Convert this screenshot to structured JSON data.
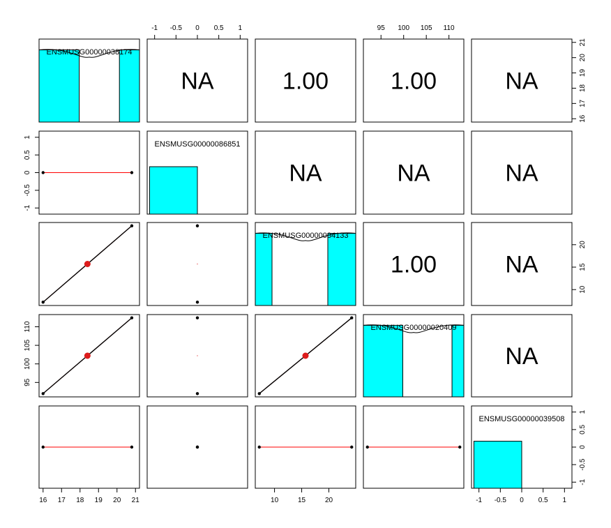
{
  "chart_data": {
    "type": "scatter",
    "kind": "pairs-matrix",
    "variables": [
      "ENSMUSG00000038174",
      "ENSMUSG00000086851",
      "ENSMUSG00000084133",
      "ENSMUSG00000020409",
      "ENSMUSG00000039508"
    ],
    "observations": {
      "ENSMUSG00000038174": [
        16,
        20.8
      ],
      "ENSMUSG00000086851": [
        0,
        0
      ],
      "ENSMUSG00000084133": [
        7.2,
        24.2
      ],
      "ENSMUSG00000020409": [
        92,
        112.4
      ],
      "ENSMUSG00000039508": [
        0,
        0
      ]
    },
    "means": {
      "ENSMUSG00000038174": 18.4,
      "ENSMUSG00000084133": 15.7,
      "ENSMUSG00000020409": 102.2
    },
    "correlations": [
      {
        "row": 1,
        "col": 2,
        "label": "NA"
      },
      {
        "row": 1,
        "col": 3,
        "label": "1.00"
      },
      {
        "row": 1,
        "col": 4,
        "label": "1.00"
      },
      {
        "row": 1,
        "col": 5,
        "label": "NA"
      },
      {
        "row": 2,
        "col": 3,
        "label": "NA"
      },
      {
        "row": 2,
        "col": 4,
        "label": "NA"
      },
      {
        "row": 2,
        "col": 5,
        "label": "NA"
      },
      {
        "row": 3,
        "col": 4,
        "label": "1.00"
      },
      {
        "row": 3,
        "col": 5,
        "label": "NA"
      },
      {
        "row": 4,
        "col": 5,
        "label": "NA"
      }
    ],
    "histograms": [
      {
        "variable": "ENSMUSG00000038174",
        "bins": [
          [
            16,
            18,
            1
          ],
          [
            20,
            21,
            1
          ]
        ],
        "xlim": [
          16,
          21
        ],
        "ymax": 1.15,
        "density_curve": true
      },
      {
        "variable": "ENSMUSG00000086851",
        "bins": [
          [
            -1,
            0,
            1
          ]
        ],
        "xlim": [
          -1.05,
          1.05
        ],
        "ymax": 1.75,
        "density_curve": false
      },
      {
        "variable": "ENSMUSG00000084133",
        "bins": [
          [
            7,
            10,
            1
          ],
          [
            20,
            25,
            1
          ]
        ],
        "xlim": [
          7,
          25
        ],
        "ymax": 1.15,
        "density_curve": true
      },
      {
        "variable": "ENSMUSG00000020409",
        "bins": [
          [
            92,
            100,
            1
          ],
          [
            110,
            112.4,
            1
          ]
        ],
        "xlim": [
          92,
          112.4
        ],
        "ymax": 1.15,
        "density_curve": true
      },
      {
        "variable": "ENSMUSG00000039508",
        "bins": [
          [
            -1,
            0,
            1
          ]
        ],
        "xlim": [
          -1.05,
          1.05
        ],
        "ymax": 1.75,
        "density_curve": false
      }
    ],
    "axes": {
      "ENSMUSG00000038174": {
        "range": [
          16,
          21
        ],
        "ticks": [
          16,
          17,
          18,
          19,
          20,
          21
        ]
      },
      "ENSMUSG00000086851": {
        "range": [
          -1.08,
          1.08
        ],
        "ticks": [
          -1.0,
          -0.5,
          0.0,
          0.5,
          1.0
        ]
      },
      "ENSMUSG00000084133": {
        "range": [
          7.2,
          24.2
        ],
        "ticks": [
          10,
          15,
          20
        ]
      },
      "ENSMUSG00000020409": {
        "range": [
          92,
          112.4
        ],
        "ticks": [
          95,
          100,
          105,
          110
        ]
      },
      "ENSMUSG00000039508": {
        "range": [
          -1.08,
          1.08
        ],
        "ticks": [
          -1.0,
          -0.5,
          0.0,
          0.5,
          1.0
        ]
      }
    },
    "colors": {
      "histogram_fill": "#00ffff",
      "fit_line": "#ff0000",
      "mean_point": "#dd1c1c",
      "points": "#000000"
    }
  }
}
